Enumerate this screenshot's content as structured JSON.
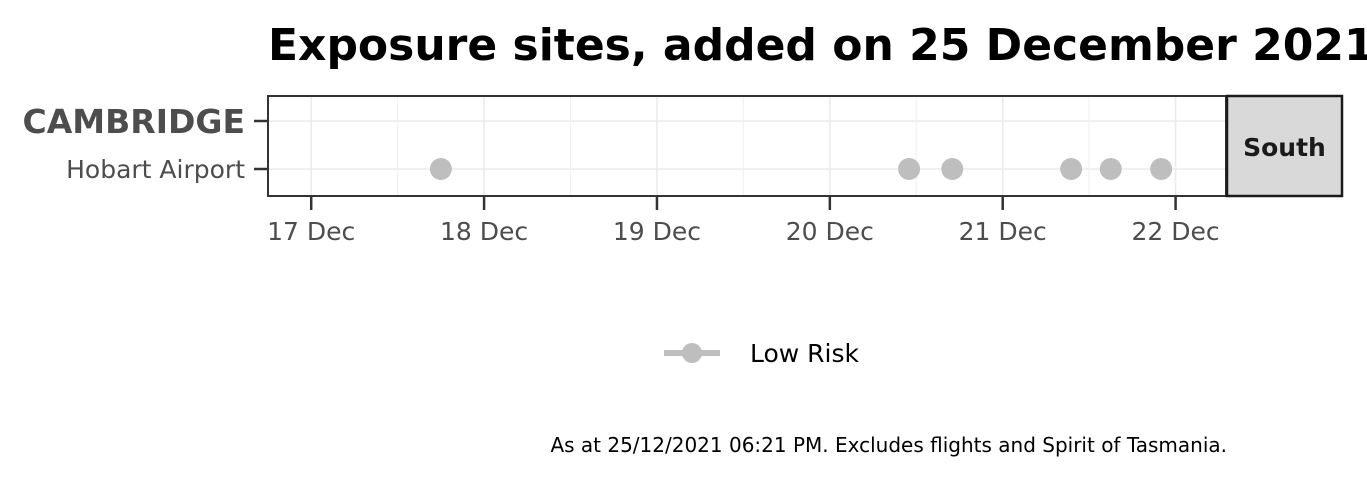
{
  "chart_data": {
    "type": "scatter",
    "title": "Exposure sites, added on 25 December 2021",
    "y_categories": [
      {
        "label": "CAMBRIDGE",
        "kind": "group-heading"
      },
      {
        "label": "Hobart Airport",
        "kind": "site"
      }
    ],
    "x_ticks": [
      "17 Dec",
      "18 Dec",
      "19 Dec",
      "20 Dec",
      "21 Dec",
      "22 Dec"
    ],
    "xlim": [
      "2021-12-16 18:00",
      "2021-12-22 07:00"
    ],
    "facet_label": "South",
    "series": [
      {
        "name": "Low Risk",
        "color": "#bebebe",
        "points": [
          {
            "x": "2021-12-17 18:00",
            "y": "Hobart Airport"
          },
          {
            "x": "2021-12-20 11:00",
            "y": "Hobart Airport"
          },
          {
            "x": "2021-12-20 17:00",
            "y": "Hobart Airport"
          },
          {
            "x": "2021-12-21 09:30",
            "y": "Hobart Airport"
          },
          {
            "x": "2021-12-21 15:00",
            "y": "Hobart Airport"
          },
          {
            "x": "2021-12-21 22:00",
            "y": "Hobart Airport"
          }
        ]
      }
    ],
    "grid": true,
    "legend_position": "bottom",
    "caption": "As at 25/12/2021 06:21 PM. Excludes flights and Spirit of Tasmania."
  }
}
